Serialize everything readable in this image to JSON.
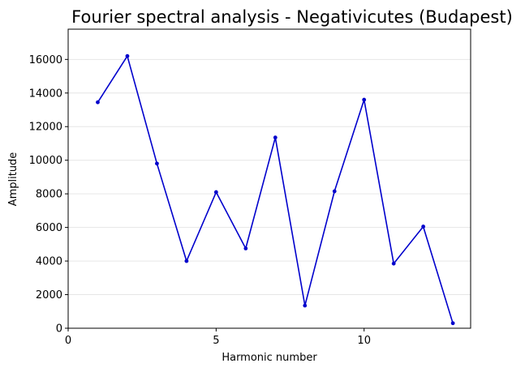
{
  "chart_data": {
    "type": "line",
    "title": "Fourier spectral analysis - Negativicutes (Budapest)",
    "xlabel": "Harmonic number",
    "ylabel": "Amplitude",
    "xlim": [
      0,
      13.6
    ],
    "ylim": [
      0,
      17800
    ],
    "xticks": [
      0,
      5,
      10
    ],
    "yticks": [
      0,
      2000,
      4000,
      6000,
      8000,
      10000,
      12000,
      14000,
      16000
    ],
    "grid": "horizontal",
    "color": "#0000cc",
    "series": [
      {
        "x": [
          1,
          2,
          3,
          4,
          5,
          6,
          7,
          8,
          9,
          10,
          11,
          12,
          13
        ],
        "values": [
          13450,
          16200,
          9800,
          4000,
          8100,
          4750,
          11350,
          1350,
          8150,
          13600,
          3850,
          6050,
          300
        ]
      }
    ]
  }
}
